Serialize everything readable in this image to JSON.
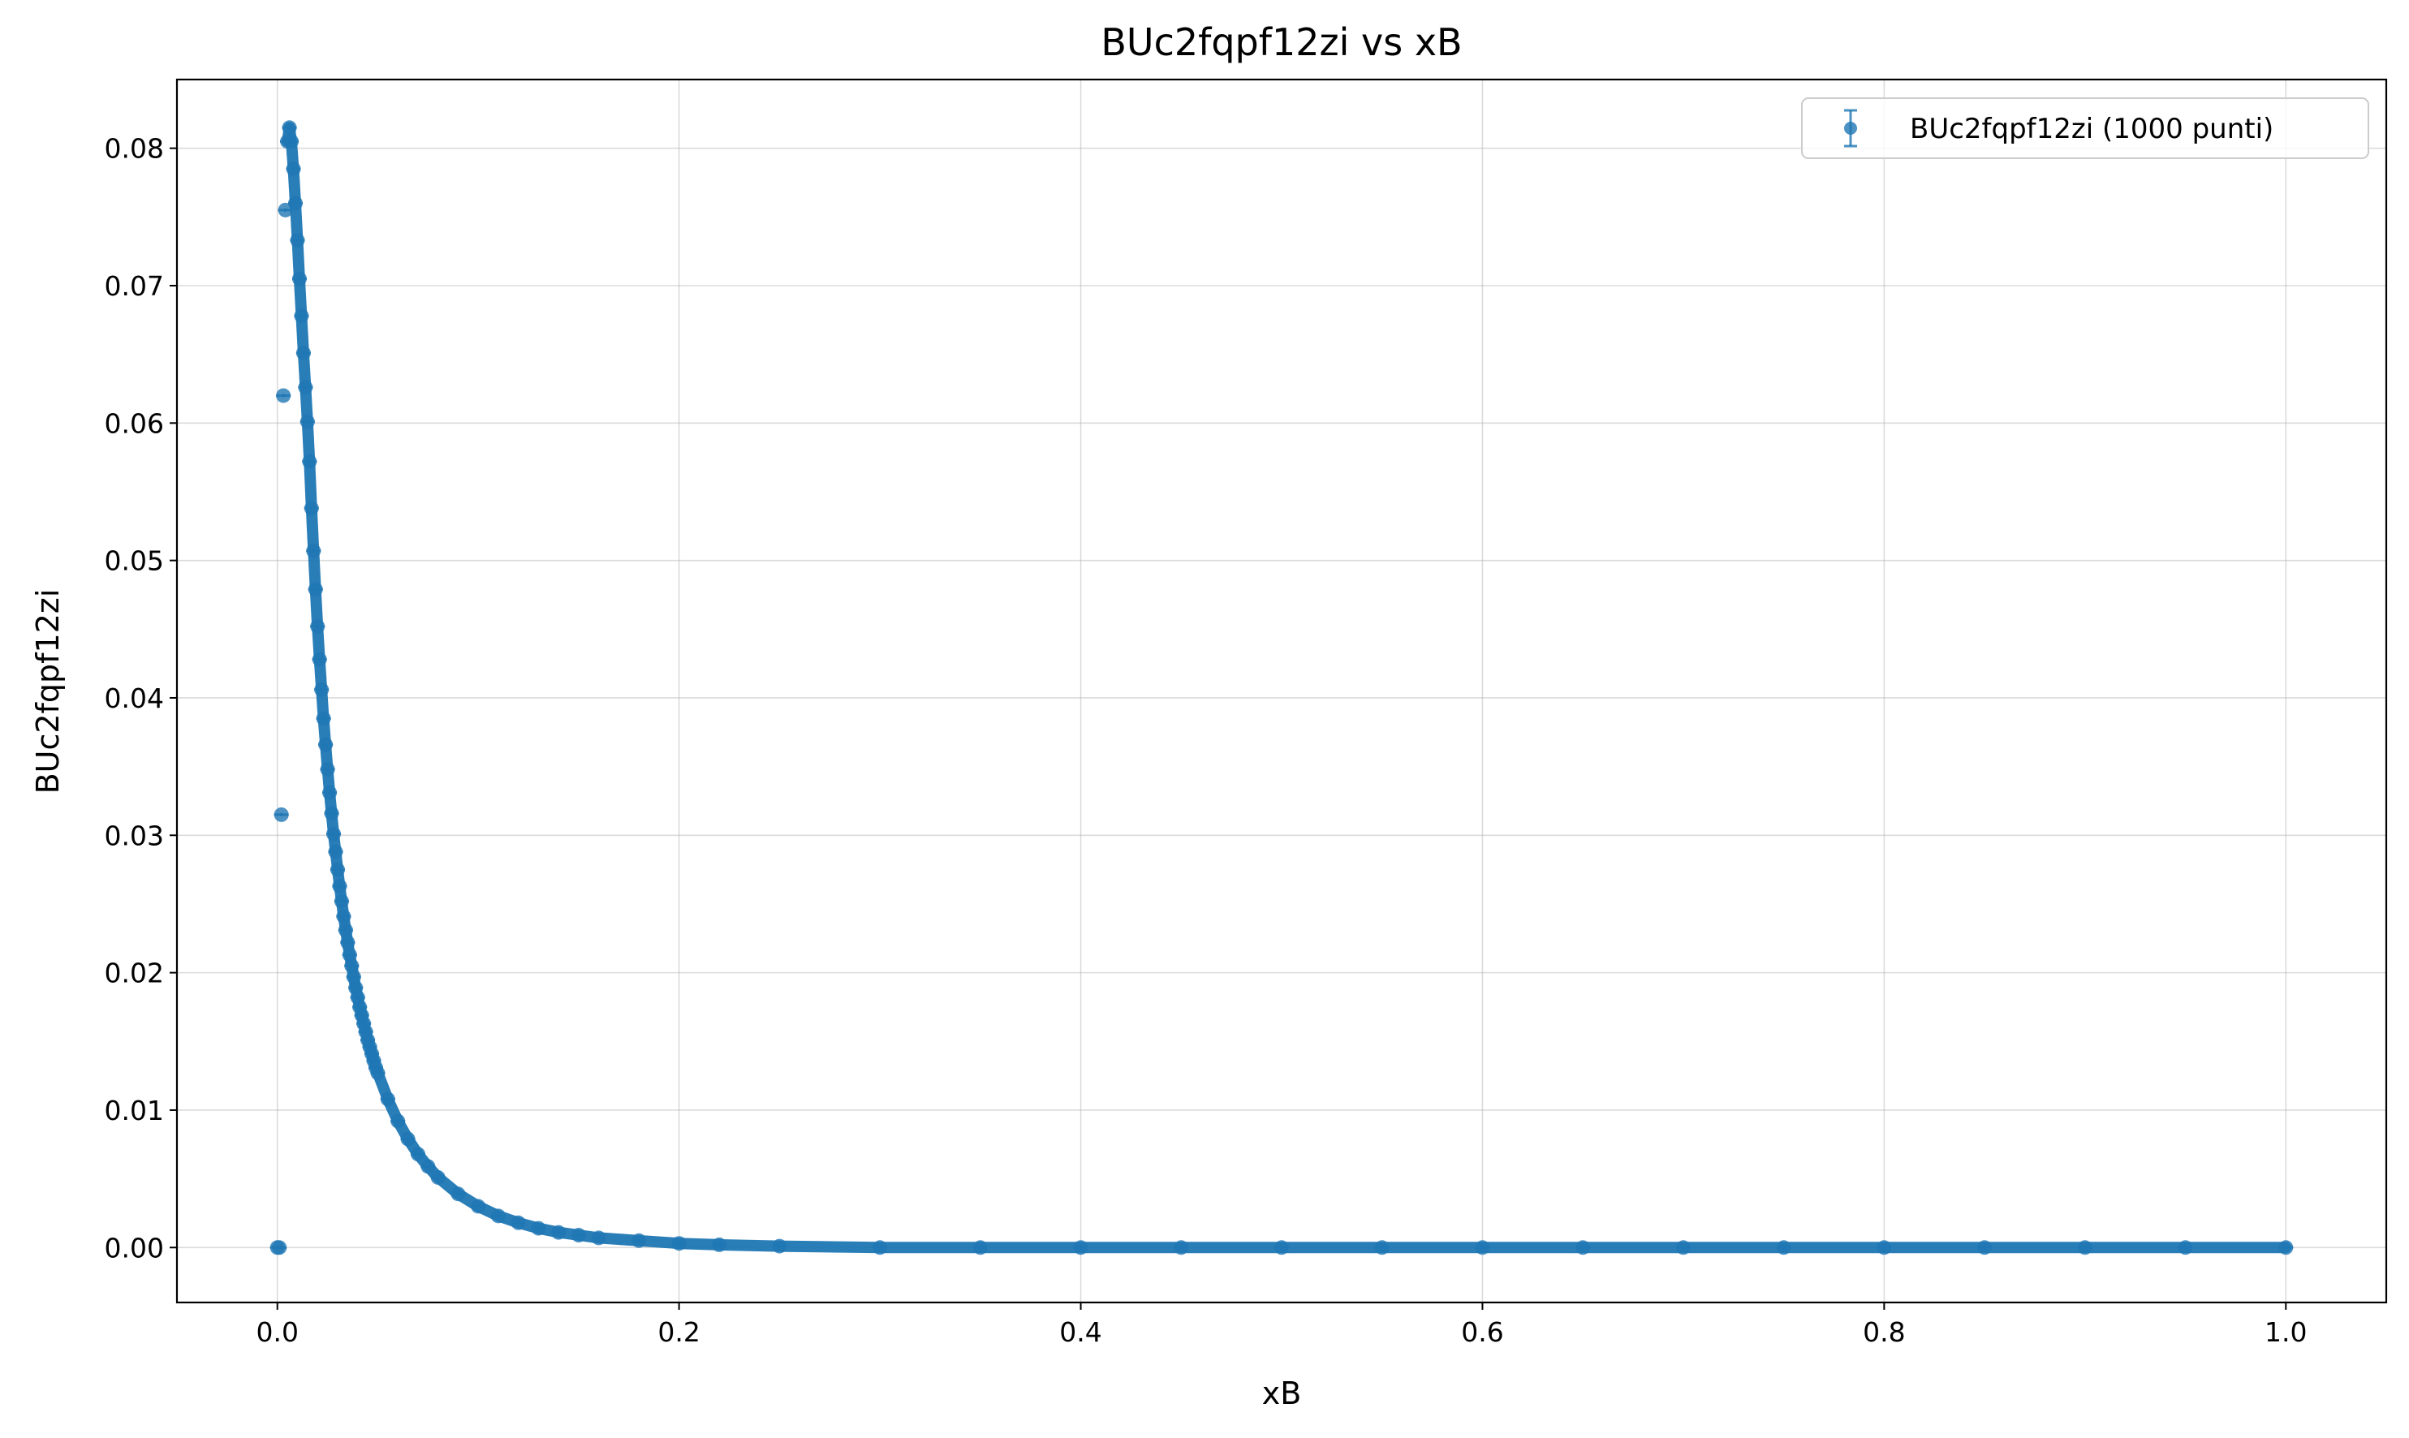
{
  "chart_data": {
    "type": "scatter",
    "title": "BUc2fqpf12zi vs xB",
    "xlabel": "xB",
    "ylabel": "BUc2fqpf12zi",
    "xlim": [
      -0.05,
      1.05
    ],
    "ylim": [
      -0.004,
      0.085
    ],
    "xticks": [
      0.0,
      0.2,
      0.4,
      0.6,
      0.8,
      1.0
    ],
    "xtick_labels": [
      "0.0",
      "0.2",
      "0.4",
      "0.6",
      "0.8",
      "1.0"
    ],
    "yticks": [
      0.0,
      0.01,
      0.02,
      0.03,
      0.04,
      0.05,
      0.06,
      0.07,
      0.08
    ],
    "ytick_labels": [
      "0.00",
      "0.01",
      "0.02",
      "0.03",
      "0.04",
      "0.05",
      "0.06",
      "0.07",
      "0.08"
    ],
    "grid": true,
    "legend_position": "top-right",
    "series": [
      {
        "name": "BUc2fqpf12zi (1000 punti)",
        "color": "#1f77b4",
        "marker": "circle",
        "error_bars": "vertical",
        "x": [
          0.0,
          0.001,
          0.002,
          0.003,
          0.004,
          0.005,
          0.006,
          0.007,
          0.008,
          0.009,
          0.01,
          0.011,
          0.012,
          0.013,
          0.014,
          0.015,
          0.016,
          0.017,
          0.018,
          0.019,
          0.02,
          0.021,
          0.022,
          0.023,
          0.024,
          0.025,
          0.026,
          0.027,
          0.028,
          0.029,
          0.03,
          0.031,
          0.032,
          0.033,
          0.034,
          0.035,
          0.036,
          0.037,
          0.038,
          0.039,
          0.04,
          0.041,
          0.042,
          0.043,
          0.044,
          0.045,
          0.046,
          0.047,
          0.048,
          0.049,
          0.05,
          0.055,
          0.06,
          0.065,
          0.07,
          0.075,
          0.08,
          0.09,
          0.1,
          0.11,
          0.12,
          0.13,
          0.14,
          0.15,
          0.16,
          0.18,
          0.2,
          0.22,
          0.25,
          0.3,
          0.35,
          0.4,
          0.45,
          0.5,
          0.55,
          0.6,
          0.65,
          0.7,
          0.75,
          0.8,
          0.85,
          0.9,
          0.95,
          1.0
        ],
        "y": [
          0.0,
          0.0,
          0.0315,
          0.062,
          0.0755,
          0.0805,
          0.0815,
          0.0805,
          0.0785,
          0.076,
          0.0733,
          0.0705,
          0.0678,
          0.0651,
          0.0626,
          0.0601,
          0.0572,
          0.0538,
          0.0507,
          0.0479,
          0.0452,
          0.0428,
          0.0406,
          0.0385,
          0.0366,
          0.0348,
          0.0331,
          0.0316,
          0.0301,
          0.0288,
          0.0275,
          0.0263,
          0.0252,
          0.0241,
          0.0231,
          0.0222,
          0.0213,
          0.0205,
          0.0197,
          0.0189,
          0.0182,
          0.0175,
          0.0169,
          0.0163,
          0.0157,
          0.0151,
          0.0146,
          0.0141,
          0.0136,
          0.0131,
          0.0127,
          0.0108,
          0.0092,
          0.0079,
          0.0068,
          0.0059,
          0.0051,
          0.0039,
          0.003,
          0.0023,
          0.0018,
          0.0014,
          0.0011,
          0.0009,
          0.0007,
          0.0005,
          0.0003,
          0.0002,
          0.0001,
          0.0,
          0.0,
          0.0,
          0.0,
          0.0,
          0.0,
          0.0,
          0.0,
          0.0,
          0.0,
          0.0,
          0.0,
          0.0,
          0.0,
          0.0
        ]
      }
    ]
  }
}
